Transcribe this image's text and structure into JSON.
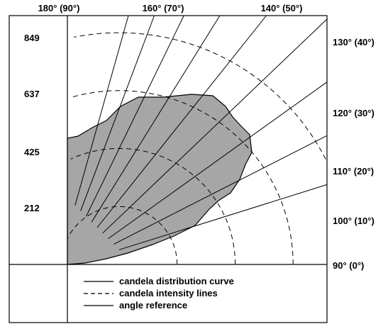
{
  "chart_data": {
    "type": "polar-candela",
    "top_labels": [
      "180° (90°)",
      "160° (70°)",
      "140° (50°)"
    ],
    "right_labels": [
      "130° (40°)",
      "120° (30°)",
      "110° (20°)",
      "100° (10°)",
      "90° (0°)"
    ],
    "intensity_ticks": [
      "849",
      "637",
      "425",
      "212"
    ],
    "intensity_values": [
      849,
      637,
      425,
      212
    ],
    "reference_angles_deg": [
      10,
      20,
      30,
      40,
      50,
      60,
      70,
      80,
      90
    ],
    "curve": [
      [
        0,
        540
      ],
      [
        10,
        545
      ],
      [
        20,
        560
      ],
      [
        30,
        585
      ],
      [
        40,
        625
      ],
      [
        50,
        700
      ],
      [
        60,
        690
      ],
      [
        70,
        595
      ],
      [
        80,
        525
      ],
      [
        90,
        500
      ]
    ],
    "colors": {
      "curve_fill": "#a6a6a6",
      "stroke": "#000000"
    },
    "legend": [
      {
        "style": "solid",
        "label": "candela distribution curve"
      },
      {
        "style": "dashed",
        "label": "candela intensity lines"
      },
      {
        "style": "solid",
        "label": "angle reference"
      }
    ]
  }
}
